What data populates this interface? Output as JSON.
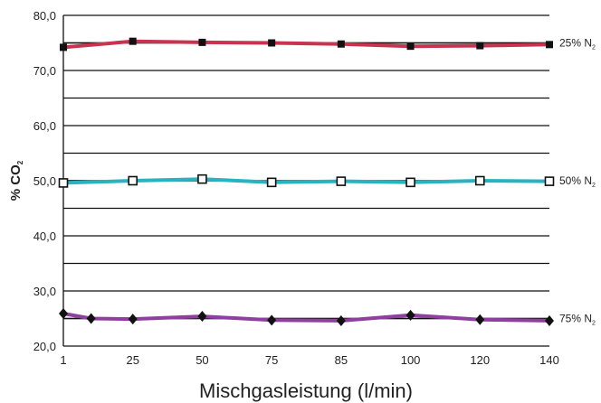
{
  "chart_data": {
    "type": "line",
    "title": "",
    "xlabel": "Mischgasleistung (l/min)",
    "ylabel_main": "% CO",
    "ylabel_sub": "2",
    "categories": [
      "1",
      "25",
      "50",
      "75",
      "85",
      "100",
      "120",
      "140"
    ],
    "ylim": [
      20,
      80
    ],
    "yticks": [
      "20,0",
      "30,0",
      "40,0",
      "50,0",
      "60,0",
      "70,0",
      "80,0"
    ],
    "ytick_values": [
      20,
      30,
      40,
      50,
      60,
      70,
      80
    ],
    "grid_values": [
      25,
      30,
      35,
      40,
      45,
      50,
      55,
      60,
      65,
      70,
      75,
      80
    ],
    "grid": true,
    "series": [
      {
        "name": "25% N",
        "name_sub": "2",
        "color": "#c8334f",
        "marker": "square-filled",
        "reference": 75.0,
        "points": [
          {
            "x": 0,
            "y": 74.2
          },
          {
            "x": 1,
            "y": 75.3
          },
          {
            "x": 2,
            "y": 75.1
          },
          {
            "x": 3,
            "y": 75.0
          },
          {
            "x": 4,
            "y": 74.8
          },
          {
            "x": 5,
            "y": 74.4
          },
          {
            "x": 6,
            "y": 74.5
          },
          {
            "x": 7,
            "y": 74.7
          }
        ]
      },
      {
        "name": "50% N",
        "name_sub": "2",
        "color": "#29b3c0",
        "marker": "square-open",
        "reference": 50.0,
        "points": [
          {
            "x": 0,
            "y": 49.6
          },
          {
            "x": 1,
            "y": 50.0
          },
          {
            "x": 2,
            "y": 50.3
          },
          {
            "x": 3,
            "y": 49.7
          },
          {
            "x": 4,
            "y": 49.9
          },
          {
            "x": 5,
            "y": 49.7
          },
          {
            "x": 6,
            "y": 50.0
          },
          {
            "x": 7,
            "y": 49.9
          }
        ]
      },
      {
        "name": "75% N",
        "name_sub": "2",
        "color": "#8e3fa0",
        "marker": "diamond-filled",
        "reference": 25.0,
        "points": [
          {
            "x": 0,
            "y": 25.9
          },
          {
            "x": 0.4,
            "y": 25.0
          },
          {
            "x": 1,
            "y": 24.9
          },
          {
            "x": 2,
            "y": 25.4
          },
          {
            "x": 3,
            "y": 24.7
          },
          {
            "x": 4,
            "y": 24.6
          },
          {
            "x": 5,
            "y": 25.6
          },
          {
            "x": 6,
            "y": 24.8
          },
          {
            "x": 7,
            "y": 24.6
          }
        ]
      }
    ]
  }
}
